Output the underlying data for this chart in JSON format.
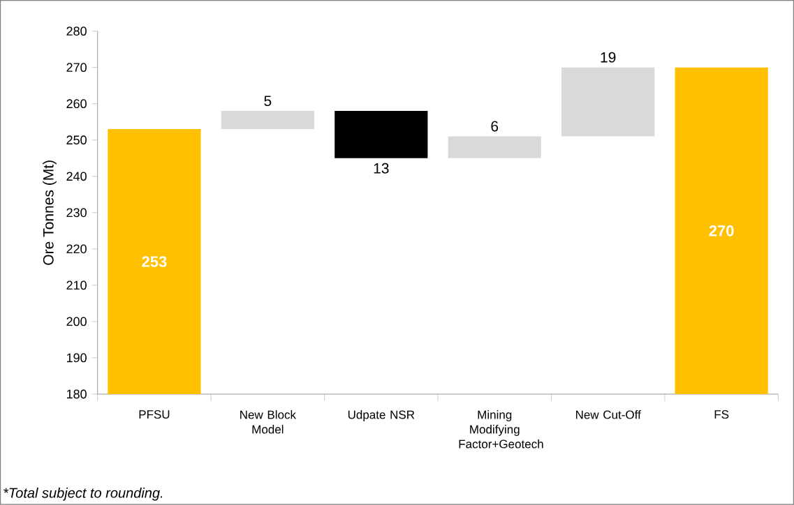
{
  "chart_data": {
    "type": "bar",
    "ylabel": "Ore Tonnes (Mt)",
    "categories": [
      "PFSU",
      "New Block Model",
      "Udpate NSR",
      "Mining Modifying Factor+Geotech",
      "New Cut-Off",
      "FS"
    ],
    "base": [
      180,
      253,
      258,
      245,
      251,
      180
    ],
    "values": [
      73,
      5,
      -13,
      6,
      19,
      90
    ],
    "colors": [
      "#ffc000",
      "#d9d9d9",
      "#000000",
      "#d9d9d9",
      "#d9d9d9",
      "#ffc000"
    ],
    "value_labels": [
      "253",
      "5",
      "13",
      "6",
      "19",
      "270"
    ],
    "ylim": [
      180,
      280
    ],
    "yticks": [
      180,
      190,
      200,
      210,
      220,
      230,
      240,
      250,
      260,
      270,
      280
    ],
    "grid": false,
    "annotations": [
      "*Total subject to rounding."
    ]
  }
}
